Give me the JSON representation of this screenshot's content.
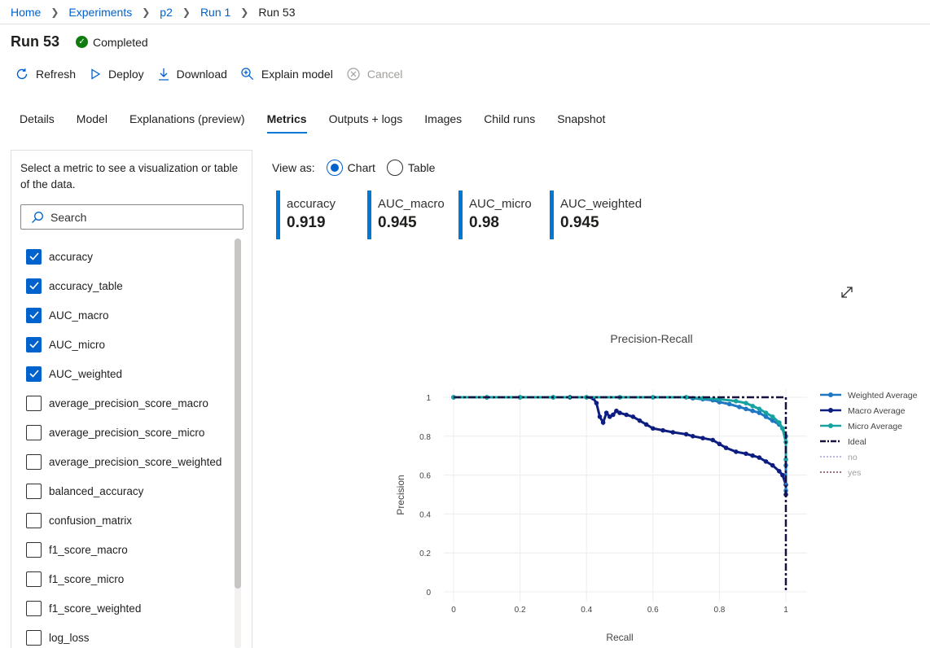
{
  "breadcrumb": {
    "items": [
      "Home",
      "Experiments",
      "p2",
      "Run 1"
    ],
    "current": "Run 53"
  },
  "header": {
    "title": "Run 53",
    "status": "Completed",
    "status_color": "#107c10"
  },
  "toolbar": {
    "refresh": "Refresh",
    "deploy": "Deploy",
    "download": "Download",
    "explain": "Explain model",
    "cancel": "Cancel"
  },
  "tabs": [
    {
      "label": "Details",
      "active": false
    },
    {
      "label": "Model",
      "active": false
    },
    {
      "label": "Explanations (preview)",
      "active": false
    },
    {
      "label": "Metrics",
      "active": true
    },
    {
      "label": "Outputs + logs",
      "active": false
    },
    {
      "label": "Images",
      "active": false
    },
    {
      "label": "Child runs",
      "active": false
    },
    {
      "label": "Snapshot",
      "active": false
    }
  ],
  "sidebar": {
    "description": "Select a metric to see a visualization or table of the data.",
    "search_placeholder": "Search",
    "metrics": [
      {
        "label": "accuracy",
        "checked": true
      },
      {
        "label": "accuracy_table",
        "checked": true
      },
      {
        "label": "AUC_macro",
        "checked": true
      },
      {
        "label": "AUC_micro",
        "checked": true
      },
      {
        "label": "AUC_weighted",
        "checked": true
      },
      {
        "label": "average_precision_score_macro",
        "checked": false
      },
      {
        "label": "average_precision_score_micro",
        "checked": false
      },
      {
        "label": "average_precision_score_weighted",
        "checked": false
      },
      {
        "label": "balanced_accuracy",
        "checked": false
      },
      {
        "label": "confusion_matrix",
        "checked": false
      },
      {
        "label": "f1_score_macro",
        "checked": false
      },
      {
        "label": "f1_score_micro",
        "checked": false
      },
      {
        "label": "f1_score_weighted",
        "checked": false
      },
      {
        "label": "log_loss",
        "checked": false
      }
    ]
  },
  "view_as": {
    "label": "View as:",
    "options": [
      "Chart",
      "Table"
    ],
    "selected": "Chart"
  },
  "metric_cards": [
    {
      "name": "accuracy",
      "value": "0.919"
    },
    {
      "name": "AUC_macro",
      "value": "0.945"
    },
    {
      "name": "AUC_micro",
      "value": "0.98"
    },
    {
      "name": "AUC_weighted",
      "value": "0.945"
    }
  ],
  "accent_color": "#0078d4",
  "chart_data": {
    "type": "line",
    "title": "Precision-Recall",
    "xlabel": "Recall",
    "ylabel": "Precision",
    "xlim": [
      0,
      1
    ],
    "ylim": [
      0,
      1
    ],
    "x_ticks": [
      "0",
      "0.2",
      "0.4",
      "0.6",
      "0.8",
      "1"
    ],
    "y_ticks": [
      "0",
      "0.2",
      "0.4",
      "0.6",
      "0.8",
      "1"
    ],
    "grid": true,
    "legend_position": "right",
    "series": [
      {
        "name": "Weighted Average",
        "color": "#1f77c4",
        "style": "solid-markers",
        "x": [
          0,
          0.1,
          0.2,
          0.3,
          0.4,
          0.5,
          0.6,
          0.7,
          0.72,
          0.75,
          0.78,
          0.8,
          0.83,
          0.86,
          0.88,
          0.9,
          0.92,
          0.94,
          0.96,
          0.98,
          0.99,
          1.0,
          1.0,
          1.0
        ],
        "y": [
          1,
          1,
          1,
          1,
          1,
          1,
          1,
          1,
          0.995,
          0.99,
          0.985,
          0.975,
          0.965,
          0.95,
          0.94,
          0.93,
          0.92,
          0.9,
          0.88,
          0.86,
          0.84,
          0.8,
          0.65,
          0.52
        ]
      },
      {
        "name": "Macro Average",
        "color": "#0d1d80",
        "style": "solid-markers",
        "x": [
          0,
          0.1,
          0.2,
          0.3,
          0.35,
          0.4,
          0.42,
          0.43,
          0.44,
          0.45,
          0.46,
          0.47,
          0.48,
          0.49,
          0.5,
          0.52,
          0.54,
          0.56,
          0.58,
          0.6,
          0.63,
          0.66,
          0.7,
          0.72,
          0.75,
          0.78,
          0.8,
          0.82,
          0.85,
          0.88,
          0.9,
          0.92,
          0.94,
          0.96,
          0.98,
          0.99,
          1.0,
          1.0
        ],
        "y": [
          1,
          1,
          1,
          1,
          1,
          1,
          0.995,
          0.97,
          0.9,
          0.87,
          0.92,
          0.9,
          0.91,
          0.93,
          0.92,
          0.91,
          0.9,
          0.88,
          0.86,
          0.84,
          0.83,
          0.82,
          0.81,
          0.8,
          0.79,
          0.78,
          0.76,
          0.74,
          0.72,
          0.71,
          0.7,
          0.69,
          0.67,
          0.65,
          0.62,
          0.6,
          0.55,
          0.5
        ]
      },
      {
        "name": "Micro Average",
        "color": "#17a2a0",
        "style": "solid-markers",
        "x": [
          0,
          0.1,
          0.2,
          0.3,
          0.4,
          0.5,
          0.6,
          0.7,
          0.75,
          0.8,
          0.85,
          0.88,
          0.9,
          0.92,
          0.94,
          0.96,
          0.98,
          0.99,
          1.0,
          1.0
        ],
        "y": [
          1,
          1,
          1,
          1,
          1,
          1,
          1,
          1,
          0.995,
          0.99,
          0.98,
          0.97,
          0.955,
          0.94,
          0.92,
          0.9,
          0.87,
          0.84,
          0.77,
          0.68
        ]
      },
      {
        "name": "Ideal",
        "color": "#1a1040",
        "style": "dashdot",
        "x": [
          0,
          1,
          1
        ],
        "y": [
          1,
          1,
          0
        ]
      },
      {
        "name": "no",
        "color": "#c0b3e8",
        "style": "dotted",
        "x": [],
        "y": []
      },
      {
        "name": "yes",
        "color": "#a0707a",
        "style": "dotted",
        "x": [],
        "y": []
      }
    ]
  }
}
